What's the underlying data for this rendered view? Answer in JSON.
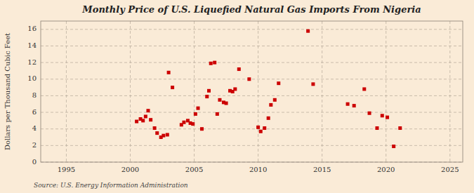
{
  "chart_data": {
    "type": "scatter",
    "title": "Monthly Price of U.S. Liquefied Natural Gas Imports From Nigeria",
    "ylabel": "Dollars per Thousand Cubic Feet",
    "annotations": [
      "Source: U.S. Energy Information Administration"
    ],
    "color": "#cc0000",
    "marker": "square",
    "grid": true,
    "xlim": [
      1993,
      2026
    ],
    "ylim": [
      0,
      17
    ],
    "xticks": [
      1995,
      2000,
      2005,
      2010,
      2015,
      2020,
      2025
    ],
    "yticks": [
      0,
      2,
      4,
      6,
      8,
      10,
      12,
      14,
      16
    ],
    "x": [
      2000.5,
      2000.8,
      2001.0,
      2001.2,
      2001.4,
      2001.6,
      2001.9,
      2002.1,
      2002.4,
      2002.6,
      2002.9,
      2003.0,
      2003.3,
      2004.0,
      2004.2,
      2004.5,
      2004.7,
      2004.9,
      2005.1,
      2005.3,
      2005.6,
      2006.0,
      2006.15,
      2006.3,
      2006.6,
      2006.8,
      2007.0,
      2007.3,
      2007.5,
      2007.8,
      2008.0,
      2008.2,
      2008.5,
      2009.3,
      2010.0,
      2010.2,
      2010.5,
      2010.8,
      2011.0,
      2011.3,
      2011.6,
      2013.9,
      2014.3,
      2017.0,
      2017.5,
      2018.3,
      2018.7,
      2019.3,
      2019.7,
      2020.1,
      2020.6,
      2021.1
    ],
    "values": [
      4.9,
      5.2,
      5.0,
      5.5,
      6.2,
      5.1,
      4.1,
      3.5,
      3.0,
      3.2,
      3.3,
      10.8,
      9.0,
      4.5,
      4.8,
      5.0,
      4.7,
      4.6,
      5.8,
      6.5,
      4.0,
      7.9,
      8.6,
      11.9,
      12.0,
      5.8,
      7.5,
      7.2,
      7.1,
      8.6,
      8.5,
      8.8,
      11.2,
      10.0,
      4.2,
      3.7,
      4.1,
      5.3,
      6.9,
      7.5,
      9.5,
      15.8,
      9.4,
      7.0,
      6.8,
      8.8,
      5.9,
      4.1,
      5.6,
      5.4,
      1.9,
      4.1
    ]
  }
}
